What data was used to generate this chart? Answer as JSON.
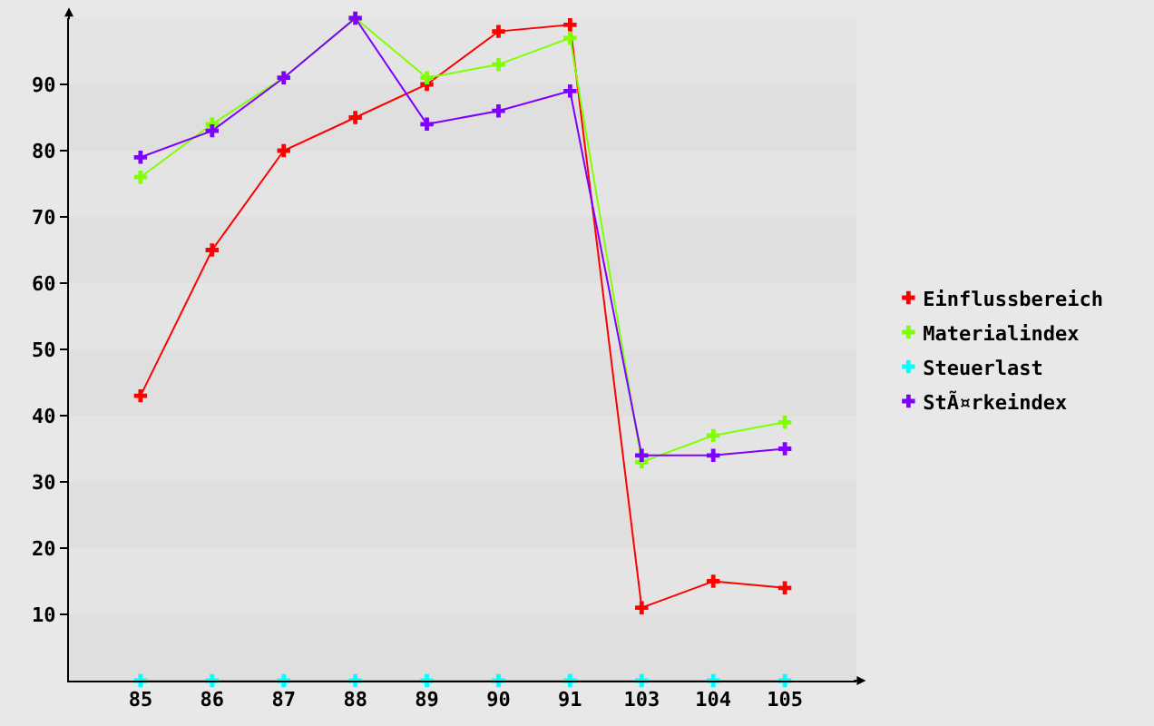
{
  "chart_data": {
    "type": "line",
    "categories": [
      "85",
      "86",
      "87",
      "88",
      "89",
      "90",
      "91",
      "103",
      "104",
      "105"
    ],
    "series": [
      {
        "name": "Einflussbereich",
        "color": "#ff0000",
        "values": [
          43,
          65,
          80,
          85,
          90,
          98,
          99,
          11,
          15,
          14
        ]
      },
      {
        "name": "Materialindex",
        "color": "#80ff00",
        "values": [
          76,
          84,
          91,
          100,
          91,
          93,
          97,
          33,
          37,
          39
        ]
      },
      {
        "name": "Steuerlast",
        "color": "#00ffff",
        "values": [
          0,
          0,
          0,
          0,
          0,
          0,
          0,
          0,
          0,
          0
        ]
      },
      {
        "name": "StÃ¤rkeindex",
        "color": "#8000ff",
        "values": [
          79,
          83,
          91,
          100,
          84,
          86,
          89,
          34,
          34,
          35
        ]
      }
    ],
    "ylim": [
      0,
      100
    ],
    "yticks": [
      10,
      20,
      30,
      40,
      50,
      60,
      70,
      80,
      90
    ],
    "legend": "right",
    "marker": "cross",
    "line_style": "solid"
  }
}
